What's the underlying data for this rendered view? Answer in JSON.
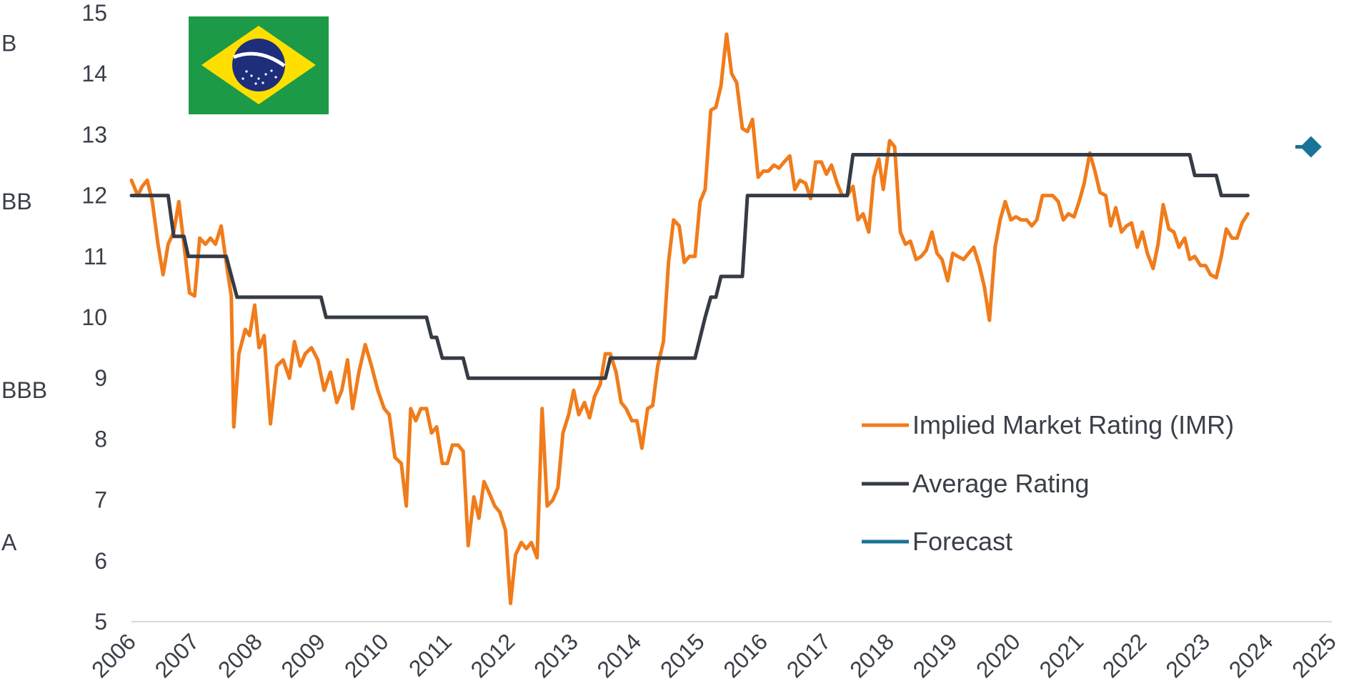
{
  "chart_data": {
    "type": "line",
    "title": "",
    "xlabel": "",
    "ylabel": "",
    "x_range": [
      2006,
      2025
    ],
    "ylim": [
      5,
      15
    ],
    "x_ticks": [
      "2006",
      "2007",
      "2008",
      "2009",
      "2010",
      "2011",
      "2012",
      "2013",
      "2014",
      "2015",
      "2016",
      "2017",
      "2018",
      "2019",
      "2020",
      "2021",
      "2022",
      "2023",
      "2024",
      "2025"
    ],
    "y_ticks": [
      "5",
      "6",
      "7",
      "8",
      "9",
      "10",
      "11",
      "12",
      "13",
      "14",
      "15"
    ],
    "rating_labels": [
      {
        "label": "B",
        "y": 14.5
      },
      {
        "label": "BB",
        "y": 11.9
      },
      {
        "label": "BBB",
        "y": 8.8
      },
      {
        "label": "A",
        "y": 6.3
      }
    ],
    "grid": false,
    "legend_position": "bottom-right",
    "series": [
      {
        "name": "Implied Market Rating (IMR)",
        "color": "#f07c1b",
        "points": [
          [
            2006.0,
            12.25
          ],
          [
            2006.1,
            12.0
          ],
          [
            2006.17,
            12.15
          ],
          [
            2006.25,
            12.25
          ],
          [
            2006.33,
            11.9
          ],
          [
            2006.42,
            11.2
          ],
          [
            2006.5,
            10.7
          ],
          [
            2006.58,
            11.2
          ],
          [
            2006.67,
            11.4
          ],
          [
            2006.75,
            11.9
          ],
          [
            2006.83,
            11.2
          ],
          [
            2006.92,
            10.4
          ],
          [
            2007.0,
            10.35
          ],
          [
            2007.08,
            11.3
          ],
          [
            2007.17,
            11.2
          ],
          [
            2007.25,
            11.3
          ],
          [
            2007.33,
            11.2
          ],
          [
            2007.42,
            11.5
          ],
          [
            2007.5,
            10.9
          ],
          [
            2007.58,
            10.35
          ],
          [
            2007.62,
            8.2
          ],
          [
            2007.7,
            9.4
          ],
          [
            2007.8,
            9.8
          ],
          [
            2007.87,
            9.7
          ],
          [
            2007.95,
            10.2
          ],
          [
            2008.02,
            9.5
          ],
          [
            2008.1,
            9.7
          ],
          [
            2008.2,
            8.25
          ],
          [
            2008.3,
            9.2
          ],
          [
            2008.4,
            9.3
          ],
          [
            2008.5,
            9.0
          ],
          [
            2008.58,
            9.6
          ],
          [
            2008.67,
            9.2
          ],
          [
            2008.75,
            9.4
          ],
          [
            2008.85,
            9.5
          ],
          [
            2008.95,
            9.3
          ],
          [
            2009.05,
            8.8
          ],
          [
            2009.15,
            9.1
          ],
          [
            2009.25,
            8.6
          ],
          [
            2009.33,
            8.8
          ],
          [
            2009.42,
            9.3
          ],
          [
            2009.5,
            8.5
          ],
          [
            2009.6,
            9.1
          ],
          [
            2009.7,
            9.55
          ],
          [
            2009.8,
            9.2
          ],
          [
            2009.9,
            8.8
          ],
          [
            2010.0,
            8.5
          ],
          [
            2010.08,
            8.4
          ],
          [
            2010.17,
            7.7
          ],
          [
            2010.27,
            7.6
          ],
          [
            2010.35,
            6.9
          ],
          [
            2010.42,
            8.5
          ],
          [
            2010.5,
            8.3
          ],
          [
            2010.58,
            8.5
          ],
          [
            2010.67,
            8.5
          ],
          [
            2010.75,
            8.1
          ],
          [
            2010.83,
            8.2
          ],
          [
            2010.92,
            7.6
          ],
          [
            2011.0,
            7.6
          ],
          [
            2011.08,
            7.9
          ],
          [
            2011.17,
            7.9
          ],
          [
            2011.25,
            7.8
          ],
          [
            2011.33,
            6.25
          ],
          [
            2011.42,
            7.05
          ],
          [
            2011.5,
            6.7
          ],
          [
            2011.58,
            7.3
          ],
          [
            2011.67,
            7.1
          ],
          [
            2011.75,
            6.9
          ],
          [
            2011.83,
            6.8
          ],
          [
            2011.92,
            6.5
          ],
          [
            2012.0,
            5.3
          ],
          [
            2012.08,
            6.1
          ],
          [
            2012.17,
            6.3
          ],
          [
            2012.25,
            6.2
          ],
          [
            2012.33,
            6.3
          ],
          [
            2012.42,
            6.05
          ],
          [
            2012.5,
            8.5
          ],
          [
            2012.58,
            6.9
          ],
          [
            2012.67,
            7.0
          ],
          [
            2012.75,
            7.2
          ],
          [
            2012.83,
            8.1
          ],
          [
            2012.92,
            8.4
          ],
          [
            2013.0,
            8.8
          ],
          [
            2013.08,
            8.4
          ],
          [
            2013.17,
            8.6
          ],
          [
            2013.25,
            8.35
          ],
          [
            2013.33,
            8.7
          ],
          [
            2013.42,
            8.9
          ],
          [
            2013.5,
            9.4
          ],
          [
            2013.58,
            9.4
          ],
          [
            2013.67,
            9.1
          ],
          [
            2013.75,
            8.6
          ],
          [
            2013.83,
            8.5
          ],
          [
            2013.92,
            8.3
          ],
          [
            2014.0,
            8.3
          ],
          [
            2014.08,
            7.85
          ],
          [
            2014.17,
            8.5
          ],
          [
            2014.25,
            8.55
          ],
          [
            2014.33,
            9.2
          ],
          [
            2014.42,
            9.6
          ],
          [
            2014.5,
            10.9
          ],
          [
            2014.58,
            11.6
          ],
          [
            2014.67,
            11.5
          ],
          [
            2014.75,
            10.9
          ],
          [
            2014.83,
            11.0
          ],
          [
            2014.92,
            11.0
          ],
          [
            2015.0,
            11.9
          ],
          [
            2015.08,
            12.1
          ],
          [
            2015.17,
            13.4
          ],
          [
            2015.25,
            13.45
          ],
          [
            2015.33,
            13.8
          ],
          [
            2015.42,
            14.65
          ],
          [
            2015.5,
            14.0
          ],
          [
            2015.58,
            13.85
          ],
          [
            2015.67,
            13.1
          ],
          [
            2015.75,
            13.05
          ],
          [
            2015.83,
            13.25
          ],
          [
            2015.92,
            12.3
          ],
          [
            2016.0,
            12.4
          ],
          [
            2016.08,
            12.4
          ],
          [
            2016.17,
            12.5
          ],
          [
            2016.25,
            12.45
          ],
          [
            2016.33,
            12.55
          ],
          [
            2016.42,
            12.65
          ],
          [
            2016.5,
            12.1
          ],
          [
            2016.58,
            12.25
          ],
          [
            2016.67,
            12.2
          ],
          [
            2016.75,
            11.95
          ],
          [
            2016.83,
            12.55
          ],
          [
            2016.92,
            12.55
          ],
          [
            2017.0,
            12.35
          ],
          [
            2017.08,
            12.5
          ],
          [
            2017.17,
            12.2
          ],
          [
            2017.25,
            12.0
          ],
          [
            2017.33,
            12.0
          ],
          [
            2017.42,
            12.15
          ],
          [
            2017.5,
            11.6
          ],
          [
            2017.58,
            11.7
          ],
          [
            2017.67,
            11.4
          ],
          [
            2017.75,
            12.3
          ],
          [
            2017.83,
            12.6
          ],
          [
            2017.9,
            12.1
          ],
          [
            2018.0,
            12.9
          ],
          [
            2018.08,
            12.8
          ],
          [
            2018.17,
            11.4
          ],
          [
            2018.25,
            11.2
          ],
          [
            2018.33,
            11.25
          ],
          [
            2018.42,
            10.95
          ],
          [
            2018.5,
            11.0
          ],
          [
            2018.58,
            11.1
          ],
          [
            2018.67,
            11.4
          ],
          [
            2018.75,
            11.05
          ],
          [
            2018.83,
            10.95
          ],
          [
            2018.92,
            10.6
          ],
          [
            2019.0,
            11.05
          ],
          [
            2019.08,
            11.0
          ],
          [
            2019.17,
            10.95
          ],
          [
            2019.25,
            11.05
          ],
          [
            2019.33,
            11.15
          ],
          [
            2019.42,
            10.85
          ],
          [
            2019.5,
            10.5
          ],
          [
            2019.58,
            9.95
          ],
          [
            2019.67,
            11.15
          ],
          [
            2019.75,
            11.6
          ],
          [
            2019.83,
            11.9
          ],
          [
            2019.92,
            11.6
          ],
          [
            2020.0,
            11.65
          ],
          [
            2020.08,
            11.6
          ],
          [
            2020.17,
            11.6
          ],
          [
            2020.25,
            11.5
          ],
          [
            2020.33,
            11.6
          ],
          [
            2020.42,
            12.0
          ],
          [
            2020.5,
            12.0
          ],
          [
            2020.58,
            12.0
          ],
          [
            2020.67,
            11.9
          ],
          [
            2020.75,
            11.6
          ],
          [
            2020.83,
            11.7
          ],
          [
            2020.92,
            11.65
          ],
          [
            2021.0,
            11.9
          ],
          [
            2021.08,
            12.2
          ],
          [
            2021.17,
            12.7
          ],
          [
            2021.25,
            12.4
          ],
          [
            2021.33,
            12.05
          ],
          [
            2021.42,
            12.0
          ],
          [
            2021.5,
            11.5
          ],
          [
            2021.58,
            11.8
          ],
          [
            2021.67,
            11.4
          ],
          [
            2021.75,
            11.5
          ],
          [
            2021.83,
            11.55
          ],
          [
            2021.92,
            11.15
          ],
          [
            2022.0,
            11.4
          ],
          [
            2022.08,
            11.05
          ],
          [
            2022.17,
            10.8
          ],
          [
            2022.25,
            11.2
          ],
          [
            2022.33,
            11.85
          ],
          [
            2022.42,
            11.45
          ],
          [
            2022.5,
            11.4
          ],
          [
            2022.58,
            11.15
          ],
          [
            2022.67,
            11.3
          ],
          [
            2022.75,
            10.95
          ],
          [
            2022.83,
            11.0
          ],
          [
            2022.92,
            10.85
          ],
          [
            2023.0,
            10.85
          ],
          [
            2023.08,
            10.7
          ],
          [
            2023.17,
            10.65
          ],
          [
            2023.25,
            11.0
          ],
          [
            2023.33,
            11.45
          ],
          [
            2023.42,
            11.3
          ],
          [
            2023.5,
            11.3
          ],
          [
            2023.58,
            11.55
          ],
          [
            2023.67,
            11.7
          ]
        ]
      },
      {
        "name": "Average Rating",
        "color": "#363b45",
        "points": [
          [
            2006.0,
            12.0
          ],
          [
            2006.58,
            12.0
          ],
          [
            2006.67,
            11.33
          ],
          [
            2006.83,
            11.33
          ],
          [
            2006.9,
            11.0
          ],
          [
            2007.5,
            11.0
          ],
          [
            2007.67,
            10.33
          ],
          [
            2009.0,
            10.33
          ],
          [
            2009.08,
            10.0
          ],
          [
            2010.67,
            10.0
          ],
          [
            2010.75,
            9.67
          ],
          [
            2010.83,
            9.67
          ],
          [
            2010.92,
            9.33
          ],
          [
            2011.25,
            9.33
          ],
          [
            2011.33,
            9.0
          ],
          [
            2013.5,
            9.0
          ],
          [
            2013.58,
            9.33
          ],
          [
            2014.92,
            9.33
          ],
          [
            2015.08,
            10.0
          ],
          [
            2015.17,
            10.33
          ],
          [
            2015.25,
            10.33
          ],
          [
            2015.33,
            10.67
          ],
          [
            2015.67,
            10.67
          ],
          [
            2015.75,
            12.0
          ],
          [
            2017.33,
            12.0
          ],
          [
            2017.42,
            12.67
          ],
          [
            2022.75,
            12.67
          ],
          [
            2022.83,
            12.33
          ],
          [
            2023.17,
            12.33
          ],
          [
            2023.25,
            12.0
          ],
          [
            2023.67,
            12.0
          ]
        ]
      },
      {
        "name": "Forecast",
        "color": "#1a7396",
        "points": [
          [
            2024.67,
            12.8
          ]
        ]
      }
    ]
  },
  "flag": {
    "name": "Brazil",
    "green": "#1c9a48",
    "yellow": "#fedf00",
    "blue": "#1f2e7a"
  }
}
